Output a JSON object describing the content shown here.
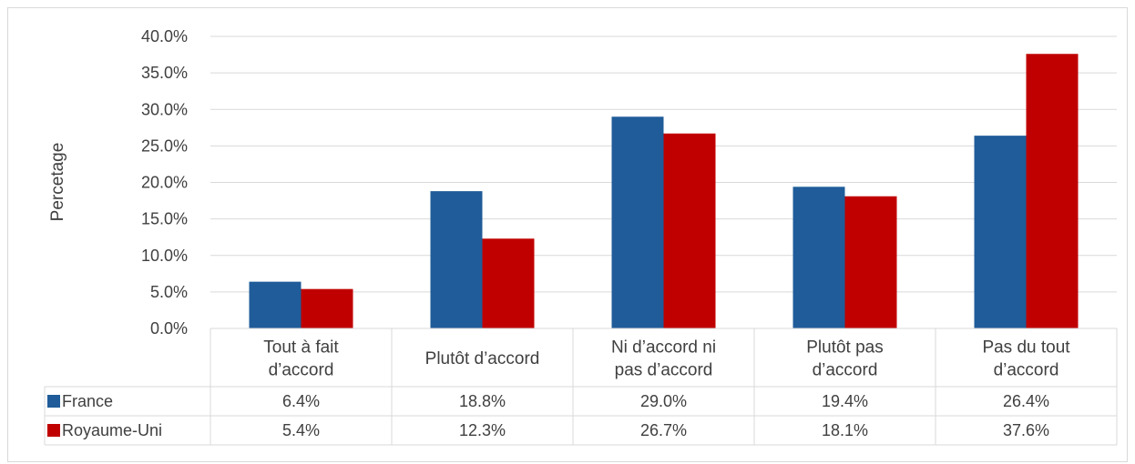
{
  "chart_data": {
    "type": "bar",
    "title": "",
    "xlabel": "",
    "ylabel": "Percetage",
    "ylim": [
      0,
      40
    ],
    "yticks": [
      "0.0%",
      "5.0%",
      "10.0%",
      "15.0%",
      "20.0%",
      "25.0%",
      "30.0%",
      "35.0%",
      "40.0%"
    ],
    "grid": true,
    "legend": "data-table-left",
    "categories": [
      [
        "Tout à fait",
        "d’accord"
      ],
      [
        "Plutôt d’accord"
      ],
      [
        "Ni d’accord ni",
        "pas d’accord"
      ],
      [
        "Plutôt pas",
        "d’accord"
      ],
      [
        "Pas du tout",
        "d’accord"
      ]
    ],
    "series": [
      {
        "name": "France",
        "color": "#1f5c99",
        "values": [
          6.4,
          18.8,
          29.0,
          19.4,
          26.4
        ],
        "labels": [
          "6.4%",
          "18.8%",
          "29.0%",
          "19.4%",
          "26.4%"
        ]
      },
      {
        "name": "Royaume-Uni",
        "color": "#c00000",
        "values": [
          5.4,
          12.3,
          26.7,
          18.1,
          37.6
        ],
        "labels": [
          "5.4%",
          "12.3%",
          "26.7%",
          "18.1%",
          "37.6%"
        ]
      }
    ]
  }
}
